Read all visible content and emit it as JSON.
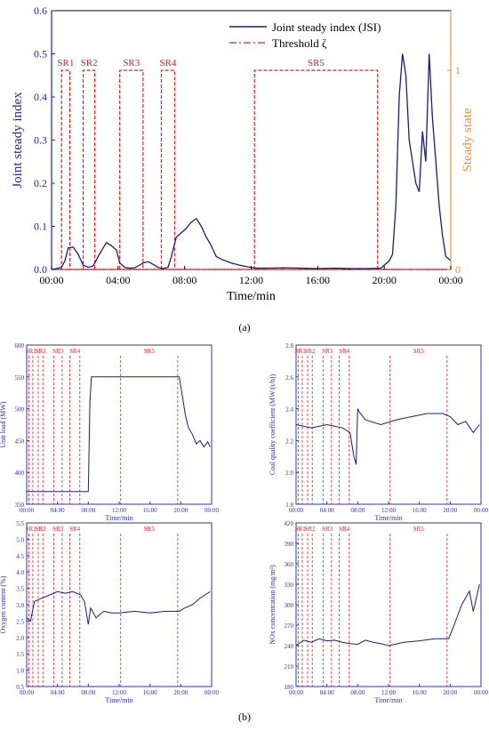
{
  "figure": {
    "panel_a_caption": "(a)",
    "panel_b_caption": "(b)"
  },
  "chart_data": [
    {
      "type": "line",
      "panel": "a",
      "xlabel": "Time/min",
      "ylabel": "Joint steady index",
      "ylabel_right": "Steady state",
      "x_ticks": [
        "00:00",
        "04:00",
        "08:00",
        "12:00",
        "16:00",
        "20:00",
        "00:00"
      ],
      "y_ticks": [
        "0.0",
        "0.1",
        "0.2",
        "0.3",
        "0.4",
        "0.5",
        "0.6"
      ],
      "y_right_ticks": [
        "0",
        "1"
      ],
      "ylim": [
        0,
        0.6
      ],
      "y_right_lim": [
        0,
        1.3
      ],
      "legend": {
        "placement": "top-right",
        "entries": [
          "Joint steady index (JSI)",
          "Threshold ζ"
        ]
      },
      "colors": {
        "series": "#1a1a8c",
        "threshold": "#e02020",
        "right_axis": "#f0922a",
        "left_axis": "#2020c0"
      },
      "threshold": 0.0,
      "series": [
        {
          "name": "Joint steady index (JSI)",
          "x": [
            0,
            0.3,
            0.6,
            0.8,
            1.0,
            1.3,
            1.6,
            1.9,
            2.2,
            2.5,
            2.8,
            3.1,
            3.3,
            3.6,
            3.9,
            4.1,
            4.4,
            4.7,
            5.0,
            5.3,
            5.5,
            5.8,
            6.1,
            6.4,
            6.7,
            7.0,
            7.2,
            7.5,
            7.8,
            8.1,
            8.4,
            8.7,
            9.0,
            9.3,
            9.6,
            9.9,
            10.3,
            10.8,
            11.3,
            11.8,
            12.3,
            13,
            14,
            15,
            16,
            17,
            18,
            19,
            19.8,
            20.0,
            20.3,
            20.5,
            20.7,
            20.9,
            21.1,
            21.3,
            21.5,
            21.7,
            21.9,
            22.1,
            22.3,
            22.5,
            22.7,
            22.9,
            23.1,
            23.3,
            23.5,
            23.7,
            24
          ],
          "y": [
            0.0,
            0.002,
            0.005,
            0.02,
            0.05,
            0.052,
            0.035,
            0.01,
            0.005,
            0.008,
            0.03,
            0.05,
            0.062,
            0.055,
            0.045,
            0.015,
            0.005,
            0.003,
            0.004,
            0.01,
            0.015,
            0.018,
            0.012,
            0.005,
            0.002,
            0.005,
            0.03,
            0.075,
            0.085,
            0.095,
            0.11,
            0.118,
            0.1,
            0.075,
            0.055,
            0.03,
            0.022,
            0.015,
            0.01,
            0.006,
            0.003,
            0.003,
            0.004,
            0.003,
            0.002,
            0.003,
            0.002,
            0.002,
            0.003,
            0.01,
            0.02,
            0.035,
            0.15,
            0.4,
            0.5,
            0.45,
            0.3,
            0.25,
            0.2,
            0.18,
            0.32,
            0.25,
            0.5,
            0.35,
            0.25,
            0.15,
            0.08,
            0.03,
            0.02
          ]
        }
      ],
      "steady_regions": [
        {
          "label": "SR1",
          "start": 0.6,
          "end": 1.1
        },
        {
          "label": "SR2",
          "start": 1.9,
          "end": 2.6
        },
        {
          "label": "SR3",
          "start": 4.1,
          "end": 5.5
        },
        {
          "label": "SR4",
          "start": 6.6,
          "end": 7.4
        },
        {
          "label": "SR5",
          "start": 12.2,
          "end": 19.6
        }
      ]
    },
    {
      "type": "line",
      "panel": "b1",
      "xlabel": "Time/min",
      "ylabel": "Unit load (MW)",
      "x_ticks": [
        "00:00",
        "04:00",
        "08:00",
        "12:00",
        "16:00",
        "20:00",
        "00:00"
      ],
      "y_ticks": [
        "350",
        "400",
        "450",
        "500",
        "550",
        "600"
      ],
      "ylim": [
        350,
        600
      ],
      "sr_labels": [
        "SR1",
        "SR2",
        "SR3",
        "SR4",
        "SR5"
      ],
      "series": [
        {
          "x": [
            0,
            8.0,
            8.2,
            8.4,
            19.8,
            20.2,
            20.6,
            21.0,
            21.5,
            22.0,
            22.5,
            23.0,
            23.5,
            23.8
          ],
          "y": [
            370,
            370,
            510,
            550,
            550,
            520,
            490,
            470,
            460,
            445,
            450,
            440,
            448,
            440
          ]
        }
      ]
    },
    {
      "type": "line",
      "panel": "b2",
      "xlabel": "Time/min",
      "ylabel": "Coal quality coefficient (MW/(t/h))",
      "x_ticks": [
        "00:00",
        "04:00",
        "08:00",
        "12:00",
        "16:00",
        "20:00",
        "00:00"
      ],
      "y_ticks": [
        "1.8",
        "2.0",
        "2.2",
        "2.4",
        "2.6",
        "2.8"
      ],
      "ylim": [
        1.8,
        2.8
      ],
      "sr_labels": [
        "SR1",
        "SR2",
        "SR3",
        "SR4",
        "SR5"
      ],
      "series": [
        {
          "x": [
            0,
            2,
            4,
            6,
            7,
            7.5,
            7.8,
            8.0,
            8.2,
            9,
            11,
            13,
            15,
            17,
            19,
            20,
            21,
            22,
            23,
            23.8
          ],
          "y": [
            2.3,
            2.28,
            2.3,
            2.28,
            2.25,
            2.1,
            2.05,
            2.4,
            2.38,
            2.33,
            2.3,
            2.33,
            2.35,
            2.37,
            2.37,
            2.35,
            2.3,
            2.32,
            2.25,
            2.3
          ]
        }
      ]
    },
    {
      "type": "line",
      "panel": "b3",
      "xlabel": "Time/min",
      "ylabel": "Oxygen content (%)",
      "x_ticks": [
        "00:00",
        "04:00",
        "08:00",
        "12:00",
        "16:00",
        "20:00",
        "00:00"
      ],
      "y_ticks": [
        "0.5",
        "1.0",
        "1.5",
        "2.0",
        "2.5",
        "3.0",
        "3.5",
        "4.0",
        "4.5",
        "5.0",
        "5.5"
      ],
      "ylim": [
        0.5,
        5.5
      ],
      "sr_labels": [
        "SR1",
        "SR2",
        "SR3",
        "SR4",
        "SR5"
      ],
      "series": [
        {
          "x": [
            0,
            0.5,
            1,
            2,
            3,
            4,
            5,
            6,
            7,
            7.5,
            8.0,
            8.3,
            9,
            10,
            11,
            12,
            14,
            16,
            18,
            19.8,
            20.5,
            21.5,
            22.5,
            23.8
          ],
          "y": [
            2.6,
            2.5,
            3.1,
            3.2,
            3.3,
            3.4,
            3.35,
            3.4,
            3.3,
            3.1,
            2.4,
            2.9,
            2.6,
            2.8,
            2.75,
            2.75,
            2.8,
            2.75,
            2.8,
            2.8,
            2.9,
            3.0,
            3.2,
            3.4
          ]
        }
      ]
    },
    {
      "type": "line",
      "panel": "b4",
      "xlabel": "Time/min",
      "ylabel": "NOx concentration (mg/m³)",
      "x_ticks": [
        "00:00",
        "04:00",
        "08:00",
        "12:00",
        "16:00",
        "20:00",
        "00:00"
      ],
      "y_ticks": [
        "180",
        "210",
        "240",
        "270",
        "300",
        "330",
        "360",
        "390",
        "420"
      ],
      "ylim": [
        180,
        420
      ],
      "sr_labels": [
        "SR1",
        "SR2",
        "SR3",
        "SR4",
        "SR5"
      ],
      "series": [
        {
          "x": [
            0,
            1,
            2,
            3,
            4,
            5,
            6,
            7,
            8,
            9,
            10,
            11,
            12,
            14,
            16,
            18,
            19.8,
            20.5,
            21.5,
            22.5,
            23,
            23.8
          ],
          "y": [
            240,
            248,
            245,
            250,
            247,
            248,
            245,
            243,
            242,
            248,
            245,
            243,
            240,
            245,
            247,
            250,
            250,
            270,
            300,
            320,
            290,
            330
          ]
        }
      ]
    }
  ]
}
